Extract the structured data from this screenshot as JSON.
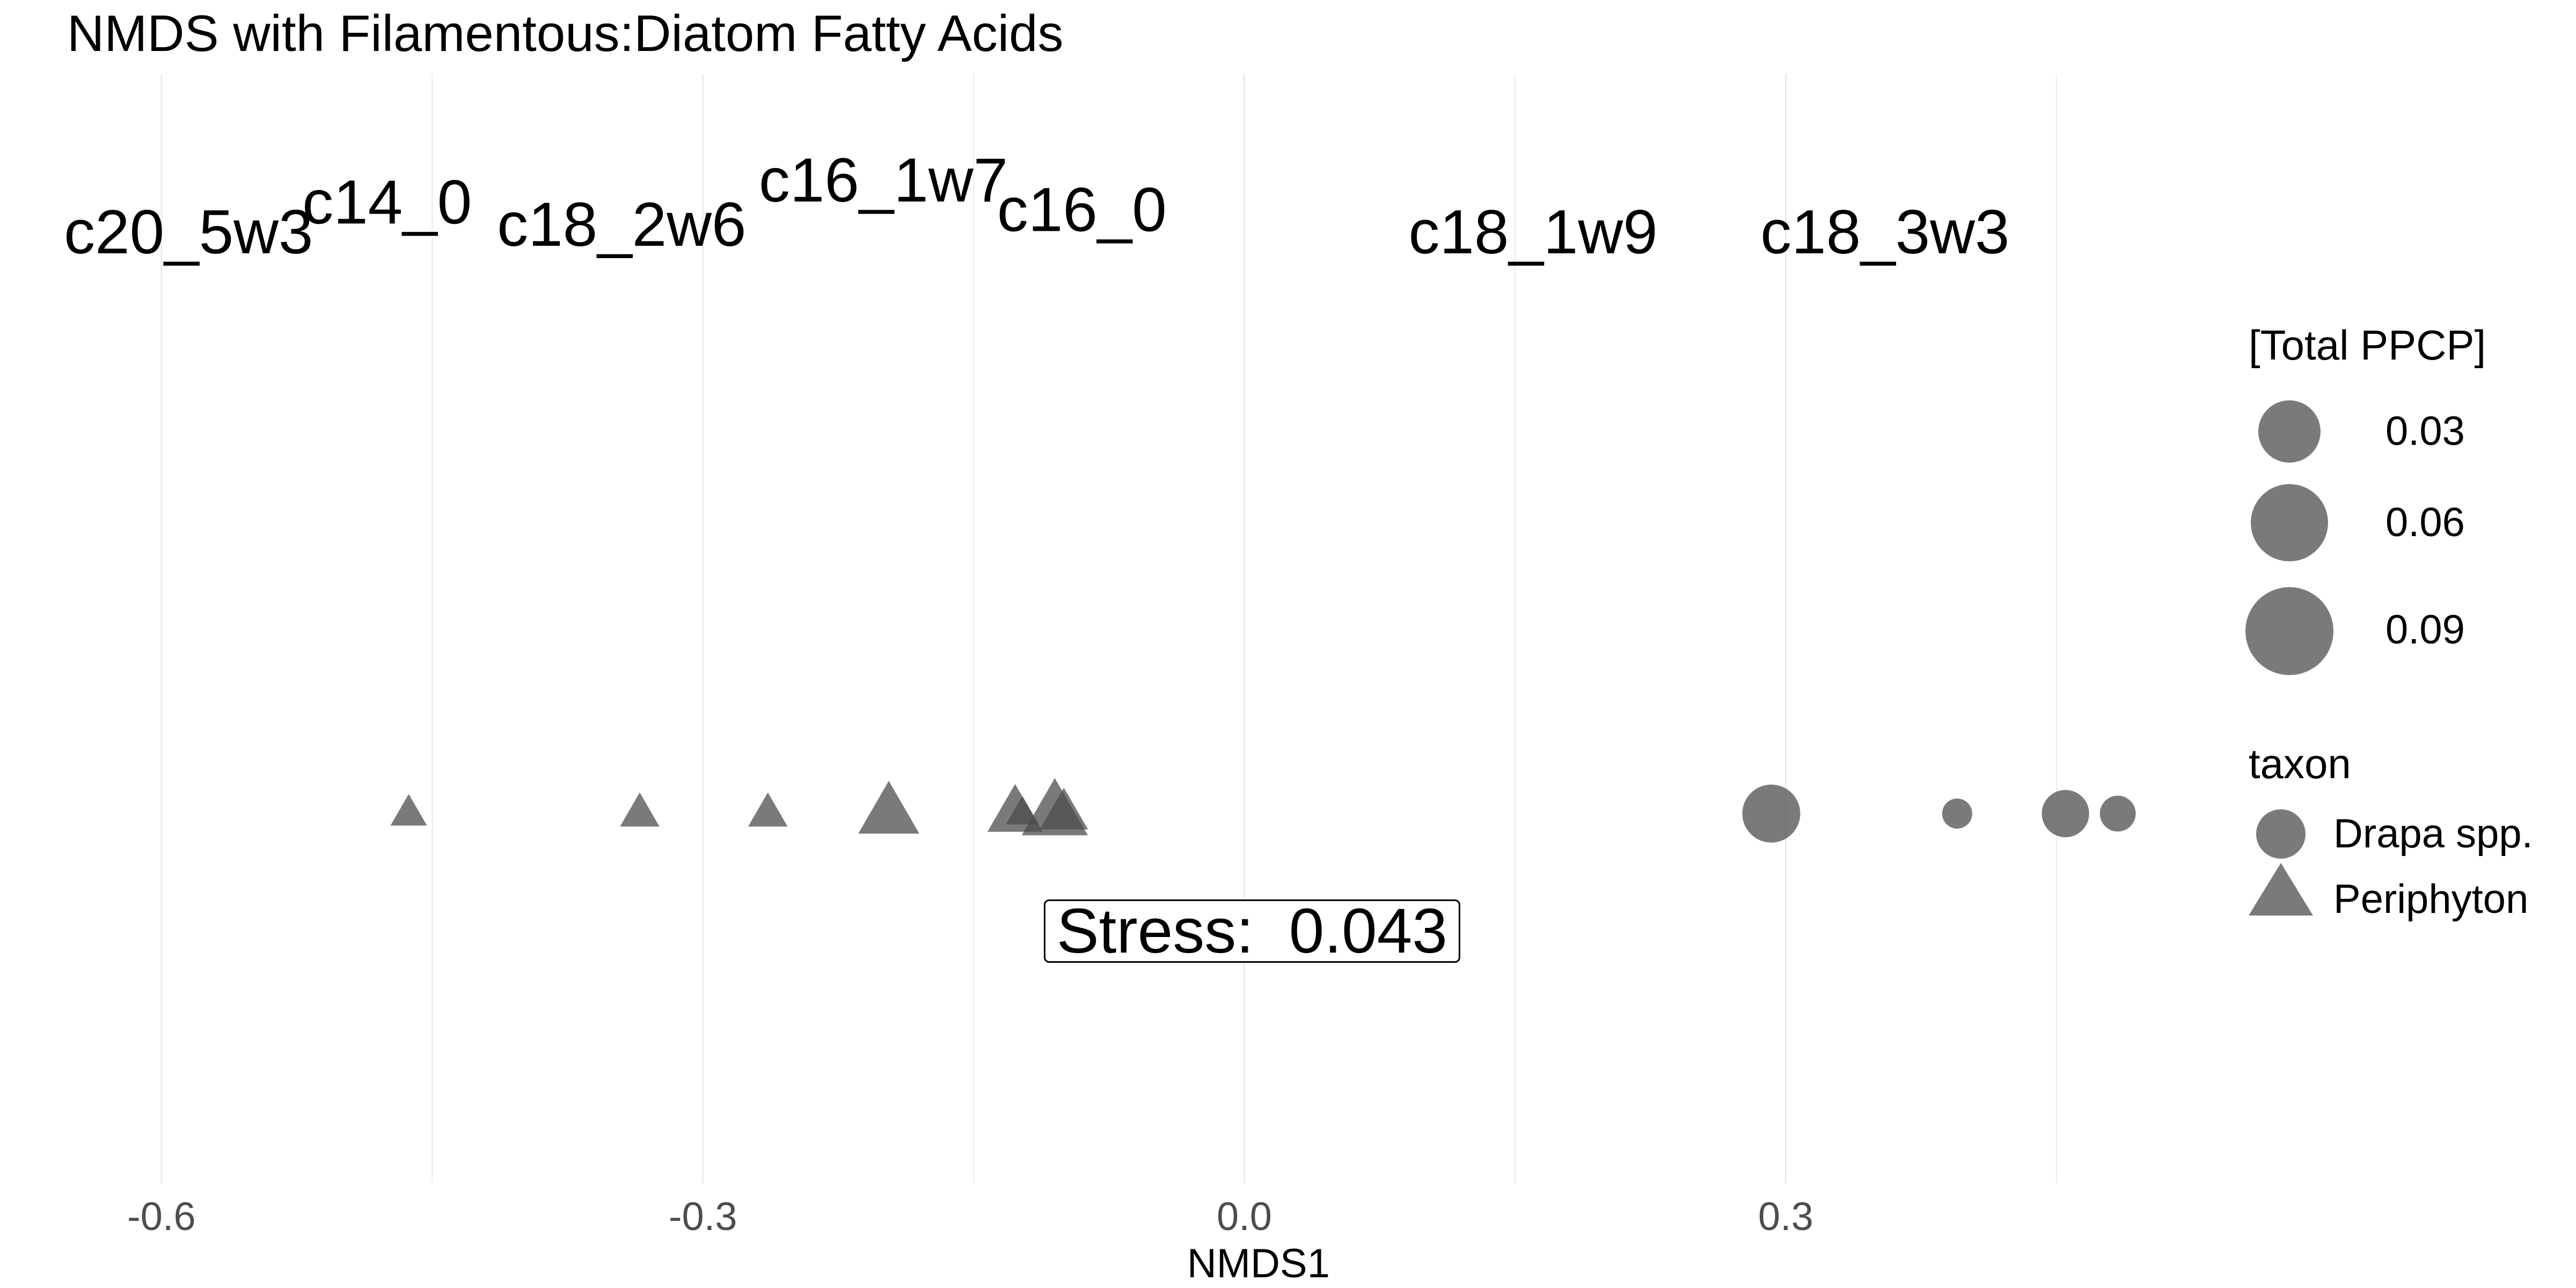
{
  "chart_data": {
    "type": "scatter",
    "title": "NMDS with Filamentous:Diatom Fatty Acids",
    "xlabel": "NMDS1",
    "xlim": [
      -0.63,
      0.5
    ],
    "x_ticks": [
      "-0.6",
      "-0.3",
      "0.0",
      "0.3"
    ],
    "x_tick_values": [
      -0.6,
      -0.3,
      0.0,
      0.3
    ],
    "grid": true,
    "fatty_acid_labels": [
      {
        "label": "c20_5w3",
        "x": -0.585,
        "y": 0.8
      },
      {
        "label": "c14_0",
        "x": -0.475,
        "y": 1.2
      },
      {
        "label": "c18_2w6",
        "x": -0.345,
        "y": 0.9
      },
      {
        "label": "c16_1w7",
        "x": -0.2,
        "y": 1.5
      },
      {
        "label": "c16_0",
        "x": -0.09,
        "y": 1.1
      },
      {
        "label": "c18_1w9",
        "x": 0.16,
        "y": 0.8
      },
      {
        "label": "c18_3w3",
        "x": 0.355,
        "y": 0.8
      }
    ],
    "series": [
      {
        "name": "Periphyton",
        "shape": "triangle",
        "points": [
          {
            "x": -0.463,
            "y": -7.0,
            "ppcp": 0.015
          },
          {
            "x": -0.335,
            "y": -7.0,
            "ppcp": 0.02
          },
          {
            "x": -0.264,
            "y": -7.0,
            "ppcp": 0.02
          },
          {
            "x": -0.197,
            "y": -7.0,
            "ppcp": 0.08
          },
          {
            "x": -0.127,
            "y": -7.0,
            "ppcp": 0.06
          },
          {
            "x": -0.105,
            "y": -7.0,
            "ppcp": 0.1
          },
          {
            "x": -0.123,
            "y": -7.0,
            "ppcp": 0.01
          },
          {
            "x": -0.1,
            "y": -7.0,
            "ppcp": 0.04
          }
        ]
      },
      {
        "name": "Drapa spp.",
        "shape": "circle",
        "points": [
          {
            "x": 0.292,
            "y": -7.0,
            "ppcp": 0.09
          },
          {
            "x": 0.395,
            "y": -7.0,
            "ppcp": 0.01
          },
          {
            "x": 0.455,
            "y": -7.0,
            "ppcp": 0.05
          },
          {
            "x": 0.484,
            "y": -7.0,
            "ppcp": 0.02
          }
        ]
      }
    ],
    "size_legend": {
      "title": "[Total PPCP]",
      "values": [
        "0.03",
        "0.06",
        "0.09"
      ]
    },
    "shape_legend": {
      "title": "taxon",
      "entries": [
        "Drapa spp.",
        "Periphyton"
      ]
    },
    "annotation": "Stress:  0.043",
    "colors": {
      "points": "#4d4d4d",
      "grid": "#ebebeb",
      "ticks": "#4d4d4d"
    }
  }
}
